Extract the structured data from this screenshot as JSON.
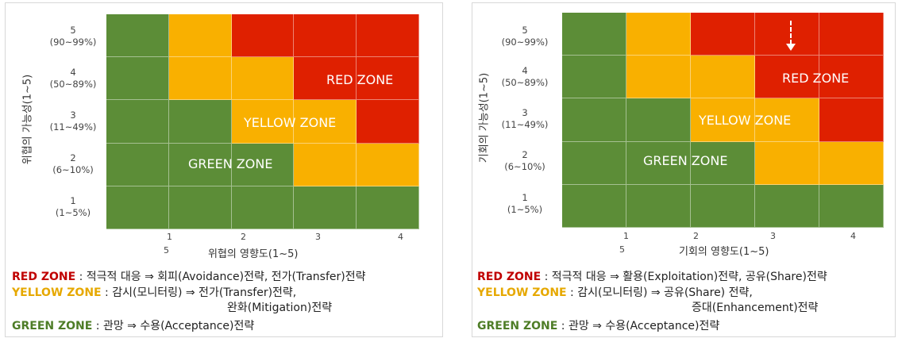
{
  "threat_chart": {
    "y_axis_title": "위협의 가능성(1~5)",
    "x_axis_title": "위협의 영향도(1~5)",
    "y_levels": [
      {
        "num": "5",
        "range": "(90~99%)"
      },
      {
        "num": "4",
        "range": "(50~89%)"
      },
      {
        "num": "3",
        "range": "(11~49%)"
      },
      {
        "num": "2",
        "range": "(6~10%)"
      },
      {
        "num": "1",
        "range": "(1~5%)"
      }
    ],
    "x_ticks": [
      "1",
      "5",
      "2",
      "3",
      "4"
    ],
    "zones": {
      "red": "RED ZONE",
      "yellow": "YELLOW ZONE",
      "green": "GREEN ZONE"
    },
    "grid_colors": [
      [
        "g",
        "y",
        "r",
        "r",
        "r"
      ],
      [
        "g",
        "y",
        "y",
        "r",
        "r"
      ],
      [
        "g",
        "g",
        "y",
        "y",
        "r"
      ],
      [
        "g",
        "g",
        "g",
        "y",
        "y"
      ],
      [
        "g",
        "g",
        "g",
        "g",
        "g"
      ]
    ],
    "legend": {
      "red_key": "RED ZONE",
      "red_text": " : 적극적 대응 ⇒ 회피(Avoidance)전략, 전가(Transfer)전략",
      "yellow_key": "YELLOW ZONE",
      "yellow_text": " : 감시(모니터링) ⇒ 전가(Transfer)전략,",
      "yellow_text2": "완화(Mitigation)전략",
      "green_key": "GREEN ZONE",
      "green_text": " : 관망 ⇒ 수용(Acceptance)전략"
    }
  },
  "opportunity_chart": {
    "y_axis_title": "기회의 가능성(1~5)",
    "x_axis_title": "기회의 영향도(1~5)",
    "y_levels": [
      {
        "num": "5",
        "range": "(90~99%)"
      },
      {
        "num": "4",
        "range": "(50~89%)"
      },
      {
        "num": "3",
        "range": "(11~49%)"
      },
      {
        "num": "2",
        "range": "(6~10%)"
      },
      {
        "num": "1",
        "range": "(1~5%)"
      }
    ],
    "x_ticks": [
      "1",
      "5",
      "2",
      "3",
      "4"
    ],
    "zones": {
      "red": "RED ZONE",
      "yellow": "YELLOW ZONE",
      "green": "GREEN ZONE"
    },
    "grid_colors": [
      [
        "g",
        "y",
        "r",
        "r",
        "r"
      ],
      [
        "g",
        "y",
        "y",
        "r",
        "r"
      ],
      [
        "g",
        "g",
        "y",
        "y",
        "r"
      ],
      [
        "g",
        "g",
        "g",
        "y",
        "y"
      ],
      [
        "g",
        "g",
        "g",
        "g",
        "g"
      ]
    ],
    "legend": {
      "red_key": "RED ZONE",
      "red_text": " : 적극적 대응 ⇒ 활용(Exploitation)전략, 공유(Share)전략",
      "yellow_key": "YELLOW ZONE",
      "yellow_text": " : 감시(모니터링) ⇒ 공유(Share) 전략,",
      "yellow_text2": "증대(Enhancement)전략",
      "green_key": "GREEN ZONE",
      "green_text": " : 관망 ⇒ 수용(Acceptance)전략"
    }
  },
  "colors": {
    "green": "#5c8d37",
    "yellow": "#f9b000",
    "red": "#df2000"
  }
}
